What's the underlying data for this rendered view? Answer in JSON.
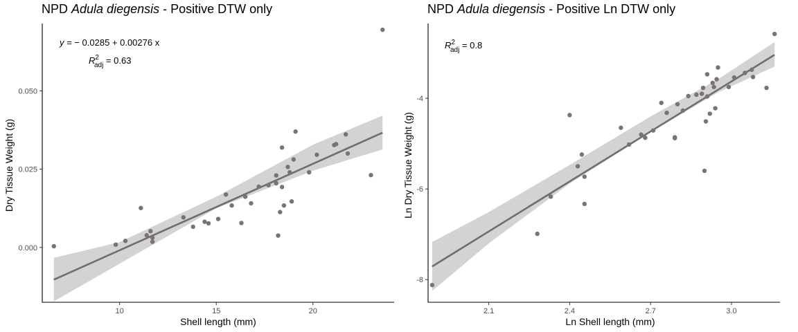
{
  "chart_data": [
    {
      "type": "scatter",
      "title_prefix": "NPD ",
      "title_species": "Adula diegensis",
      "title_suffix": " - Positive DTW only",
      "xlabel": "Shell length (mm)",
      "ylabel": "Dry Tissue Weight (g)",
      "xlim": [
        6.0,
        24.2
      ],
      "ylim": [
        -0.0175,
        0.0715
      ],
      "xticks": [
        10,
        15,
        20
      ],
      "xtick_labels": [
        "10",
        "15",
        "20"
      ],
      "yticks": [
        0.0,
        0.025,
        0.05
      ],
      "ytick_labels": [
        "0.000",
        "0.025",
        "0.050"
      ],
      "equation_lhs": "y = ",
      "equation_rhs": "− 0.0285 + 0.00276 x",
      "r2_label": "R",
      "r2_sup": "2",
      "r2_sub": "adj",
      "r2_value": " = 0.63",
      "fit": {
        "intercept": -0.0285,
        "slope": 0.00276,
        "x_range": [
          6.6,
          23.6
        ]
      },
      "ci_band": {
        "x": [
          6.6,
          10,
          15,
          20,
          23.6
        ],
        "lower": [
          -0.0172,
          -0.0052,
          0.0125,
          0.0245,
          0.0313
        ],
        "upper": [
          -0.0033,
          0.0017,
          0.0162,
          0.0328,
          0.0421
        ]
      },
      "points": [
        {
          "x": 6.6,
          "y": 0.0004
        },
        {
          "x": 9.8,
          "y": 0.0009
        },
        {
          "x": 10.3,
          "y": 0.0021
        },
        {
          "x": 11.1,
          "y": 0.0126
        },
        {
          "x": 11.4,
          "y": 0.0039
        },
        {
          "x": 11.6,
          "y": 0.0052
        },
        {
          "x": 11.7,
          "y": 0.0031
        },
        {
          "x": 11.7,
          "y": 0.0018
        },
        {
          "x": 13.3,
          "y": 0.0096
        },
        {
          "x": 13.8,
          "y": 0.0066
        },
        {
          "x": 14.4,
          "y": 0.0082
        },
        {
          "x": 14.6,
          "y": 0.0077
        },
        {
          "x": 15.1,
          "y": 0.0091
        },
        {
          "x": 15.5,
          "y": 0.0169
        },
        {
          "x": 15.8,
          "y": 0.0134
        },
        {
          "x": 16.3,
          "y": 0.0078
        },
        {
          "x": 16.5,
          "y": 0.0162
        },
        {
          "x": 16.8,
          "y": 0.0141
        },
        {
          "x": 17.2,
          "y": 0.0194
        },
        {
          "x": 17.7,
          "y": 0.0199
        },
        {
          "x": 18.1,
          "y": 0.023
        },
        {
          "x": 18.1,
          "y": 0.0205
        },
        {
          "x": 18.2,
          "y": 0.0038
        },
        {
          "x": 18.3,
          "y": 0.0113
        },
        {
          "x": 18.4,
          "y": 0.0319
        },
        {
          "x": 18.4,
          "y": 0.0193
        },
        {
          "x": 18.5,
          "y": 0.0134
        },
        {
          "x": 18.7,
          "y": 0.0257
        },
        {
          "x": 18.8,
          "y": 0.024
        },
        {
          "x": 18.9,
          "y": 0.0147
        },
        {
          "x": 19.0,
          "y": 0.0281
        },
        {
          "x": 19.1,
          "y": 0.037
        },
        {
          "x": 19.8,
          "y": 0.024
        },
        {
          "x": 20.2,
          "y": 0.0296
        },
        {
          "x": 21.1,
          "y": 0.0327
        },
        {
          "x": 21.2,
          "y": 0.033
        },
        {
          "x": 21.7,
          "y": 0.0361
        },
        {
          "x": 21.8,
          "y": 0.03
        },
        {
          "x": 23.0,
          "y": 0.0231
        },
        {
          "x": 23.6,
          "y": 0.0695
        }
      ]
    },
    {
      "type": "scatter",
      "title_prefix": "NPD ",
      "title_species": "Adula diegensis",
      "title_suffix": " - Positive Ln DTW only",
      "xlabel": "Ln Shell length (mm)",
      "ylabel": "Ln Dry Tissue Weight (g)",
      "xlim": [
        1.875,
        3.18
      ],
      "ylim": [
        -8.5,
        -2.35
      ],
      "xticks": [
        2.1,
        2.4,
        2.7,
        3.0
      ],
      "xtick_labels": [
        "2.1",
        "2.4",
        "2.7",
        "3.0"
      ],
      "yticks": [
        -8,
        -6,
        -4
      ],
      "ytick_labels": [
        "-8",
        "-6",
        "-4"
      ],
      "r2_label": "R",
      "r2_sup": "2",
      "r2_sub": "adj",
      "r2_value": " = 0.8",
      "fit": {
        "x0": 1.89,
        "y0": -7.71,
        "x1": 3.16,
        "y1": -3.04
      },
      "ci_band": {
        "x": [
          1.89,
          2.1,
          2.4,
          2.7,
          2.95,
          3.16
        ],
        "lower": [
          -8.25,
          -7.2,
          -5.88,
          -4.75,
          -3.87,
          -3.3
        ],
        "upper": [
          -7.17,
          -6.51,
          -5.47,
          -4.4,
          -3.58,
          -2.76
        ]
      },
      "points": [
        {
          "x": 1.89,
          "y": -8.12
        },
        {
          "x": 2.28,
          "y": -6.99
        },
        {
          "x": 2.33,
          "y": -6.17
        },
        {
          "x": 2.4,
          "y": -4.37
        },
        {
          "x": 2.43,
          "y": -5.5
        },
        {
          "x": 2.445,
          "y": -5.24
        },
        {
          "x": 2.455,
          "y": -6.33
        },
        {
          "x": 2.455,
          "y": -5.73
        },
        {
          "x": 2.59,
          "y": -4.65
        },
        {
          "x": 2.62,
          "y": -5.02
        },
        {
          "x": 2.665,
          "y": -4.8
        },
        {
          "x": 2.68,
          "y": -4.87
        },
        {
          "x": 2.71,
          "y": -4.71
        },
        {
          "x": 2.74,
          "y": -4.1
        },
        {
          "x": 2.76,
          "y": -4.32
        },
        {
          "x": 2.79,
          "y": -4.86
        },
        {
          "x": 2.79,
          "y": -4.88
        },
        {
          "x": 2.8,
          "y": -4.13
        },
        {
          "x": 2.82,
          "y": -4.27
        },
        {
          "x": 2.84,
          "y": -3.95
        },
        {
          "x": 2.87,
          "y": -3.92
        },
        {
          "x": 2.89,
          "y": -3.9
        },
        {
          "x": 2.895,
          "y": -3.77
        },
        {
          "x": 2.9,
          "y": -5.6
        },
        {
          "x": 2.905,
          "y": -4.51
        },
        {
          "x": 2.91,
          "y": -3.96
        },
        {
          "x": 2.91,
          "y": -3.47
        },
        {
          "x": 2.92,
          "y": -4.34
        },
        {
          "x": 2.93,
          "y": -3.66
        },
        {
          "x": 2.935,
          "y": -3.75
        },
        {
          "x": 2.94,
          "y": -4.22
        },
        {
          "x": 2.945,
          "y": -3.58
        },
        {
          "x": 2.95,
          "y": -3.32
        },
        {
          "x": 2.99,
          "y": -3.75
        },
        {
          "x": 3.01,
          "y": -3.54
        },
        {
          "x": 3.05,
          "y": -3.44
        },
        {
          "x": 3.075,
          "y": -3.37
        },
        {
          "x": 3.08,
          "y": -3.53
        },
        {
          "x": 3.13,
          "y": -3.77
        },
        {
          "x": 3.16,
          "y": -2.58
        }
      ]
    }
  ]
}
